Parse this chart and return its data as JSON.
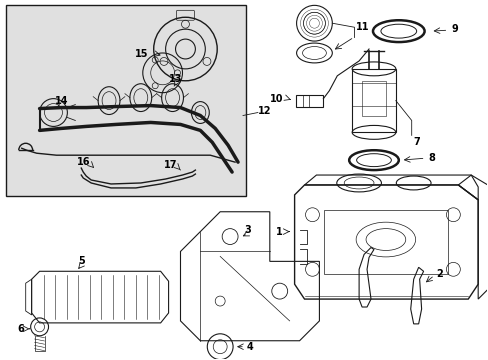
{
  "bg_color": "#ffffff",
  "box_bg": "#e0e0e0",
  "line_color": "#1a1a1a",
  "label_color": "#000000",
  "fig_width": 4.89,
  "fig_height": 3.6,
  "dpi": 100
}
